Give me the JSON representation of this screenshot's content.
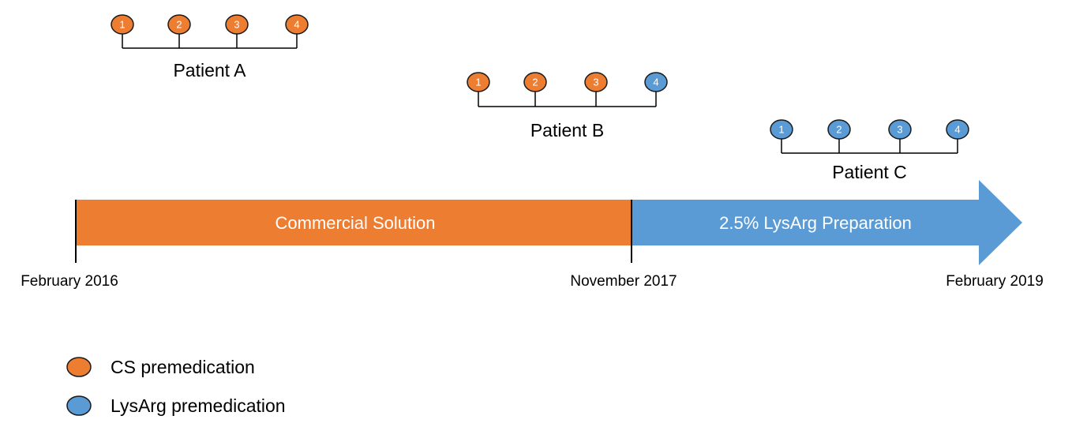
{
  "patients": [
    {
      "label": "Patient A",
      "doses": [
        {
          "label": "1",
          "color": "#ED7D31"
        },
        {
          "label": "2",
          "color": "#ED7D31"
        },
        {
          "label": "3",
          "color": "#ED7D31"
        },
        {
          "label": "4",
          "color": "#ED7D31"
        }
      ]
    },
    {
      "label": "Patient B",
      "doses": [
        {
          "label": "1",
          "color": "#ED7D31"
        },
        {
          "label": "2",
          "color": "#ED7D31"
        },
        {
          "label": "3",
          "color": "#ED7D31"
        },
        {
          "label": "4",
          "color": "#5B9BD5"
        }
      ]
    },
    {
      "label": "Patient C",
      "doses": [
        {
          "label": "1",
          "color": "#5B9BD5"
        },
        {
          "label": "2",
          "color": "#5B9BD5"
        },
        {
          "label": "3",
          "color": "#5B9BD5"
        },
        {
          "label": "4",
          "color": "#5B9BD5"
        }
      ]
    }
  ],
  "timeline": {
    "segments": [
      {
        "label": "Commercial Solution",
        "color": "#ED7D31"
      },
      {
        "label": "2.5% LysArg Preparation",
        "color": "#5B9BD5"
      }
    ],
    "dates": [
      "February 2016",
      "November 2017",
      "February 2019"
    ]
  },
  "legend": [
    {
      "label": "CS premedication",
      "color": "#ED7D31"
    },
    {
      "label": "LysArg premedication",
      "color": "#5B9BD5"
    }
  ]
}
